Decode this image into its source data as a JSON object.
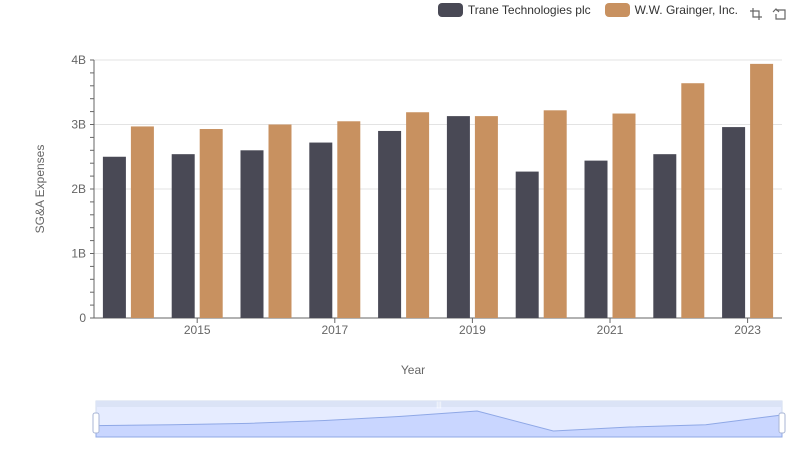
{
  "chart_data": {
    "type": "bar",
    "title": "",
    "xlabel": "Year",
    "ylabel": "SG&A Expenses",
    "categories": [
      "2014",
      "2015",
      "2016",
      "2017",
      "2018",
      "2019",
      "2020",
      "2021",
      "2022",
      "2023"
    ],
    "x_tick_labels": [
      "2015",
      "2017",
      "2019",
      "2021",
      "2023"
    ],
    "y_tick_labels": [
      "0",
      "1B",
      "2B",
      "3B",
      "4B"
    ],
    "ylim": [
      0,
      4000000000
    ],
    "grid": true,
    "legend_position": "top-right",
    "series": [
      {
        "name": "Trane Technologies plc",
        "color": "#494955",
        "values": [
          2500000000,
          2540000000,
          2600000000,
          2720000000,
          2900000000,
          3130000000,
          2270000000,
          2440000000,
          2540000000,
          2960000000
        ]
      },
      {
        "name": "W.W. Grainger, Inc.",
        "color": "#c89160",
        "values": [
          2970000000,
          2930000000,
          3000000000,
          3050000000,
          3190000000,
          3130000000,
          3220000000,
          3170000000,
          3640000000,
          3940000000
        ]
      }
    ]
  },
  "toolbox": {
    "zoom_icon": "data-zoom-icon",
    "reset_icon": "zoom-reset-icon"
  },
  "slider": {
    "handle_color": "#e6ecff",
    "fill_color": "#c9d6ff",
    "handle_label": "|||"
  }
}
